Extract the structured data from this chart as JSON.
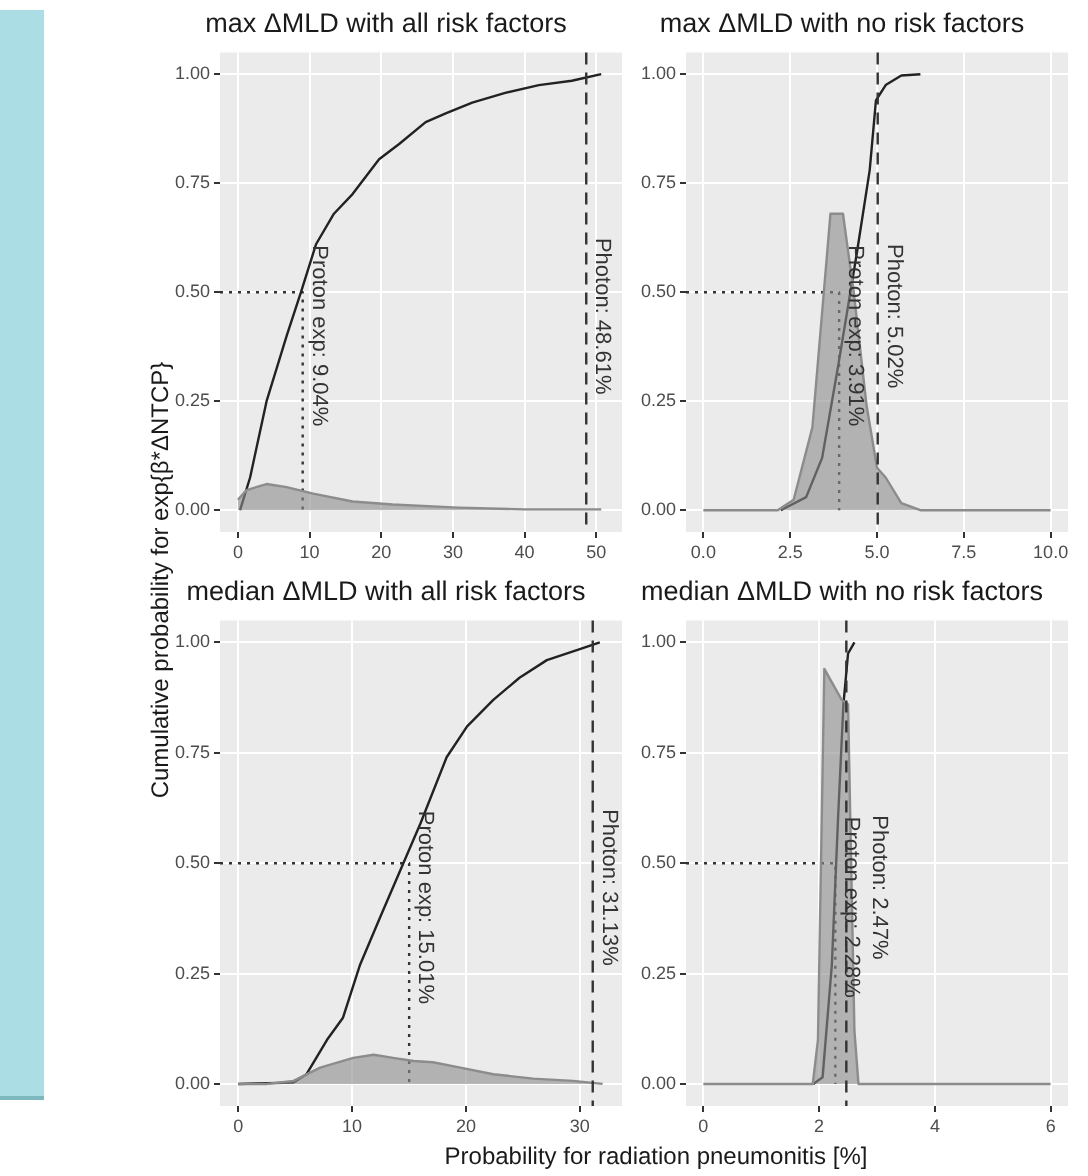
{
  "chart_data": [
    {
      "type": "line",
      "title": "max ΔMLD with all risk factors",
      "ylabel": "Cumulative probability for exp{β*ΔNTCP}",
      "marker": "none",
      "grid": true,
      "legend": false,
      "xlim": [
        -2.5,
        53.6
      ],
      "xticks": [
        0,
        10,
        20,
        30,
        40,
        50
      ],
      "ylim": [
        -0.05,
        1.05
      ],
      "yticks": [
        {
          "value": 0,
          "label": "0.00"
        },
        {
          "value": 0.25,
          "label": "0.25"
        },
        {
          "value": 0.5,
          "label": "0.50"
        },
        {
          "value": 0.75,
          "label": "0.75"
        },
        {
          "value": 1,
          "label": "1.00"
        }
      ],
      "series": [
        {
          "type": "area",
          "color": "#8c8c8c",
          "x": [
            0,
            1.2,
            4,
            6.8,
            10.5,
            16,
            21.6,
            30.8,
            40,
            50.7
          ],
          "values": [
            0.024,
            0.046,
            0.06,
            0.053,
            0.038,
            0.02,
            0.013,
            0.006,
            0.002,
            0.002
          ]
        },
        {
          "type": "line",
          "color": "#222222",
          "x": [
            0.3,
            1.7,
            4,
            6.8,
            8.8,
            10.9,
            13.4,
            16,
            19.7,
            22.5,
            26.2,
            29,
            32.7,
            37.3,
            42,
            46.6,
            50.7
          ],
          "values": [
            0,
            0.075,
            0.25,
            0.4,
            0.5,
            0.61,
            0.68,
            0.725,
            0.805,
            0.84,
            0.89,
            0.91,
            0.935,
            0.957,
            0.975,
            0.985,
            1
          ]
        },
        {
          "type": "line",
          "color": "#333333",
          "line_style": "dotted",
          "x": [
            -2.5,
            9.04,
            9.04
          ],
          "values": [
            0.5,
            0.5,
            0
          ]
        }
      ],
      "ref_lines": [
        {
          "axis": "x",
          "value": 48.61,
          "label": "Photon: 48.61%",
          "color": "#333333",
          "line_style": "dashed"
        }
      ],
      "annotations": [
        {
          "text": "Proton exp: 9.04%",
          "x": 9.04,
          "y": 0.4
        }
      ]
    },
    {
      "type": "line",
      "title": "max ΔMLD with no risk factors",
      "marker": "none",
      "grid": true,
      "legend": false,
      "xlim": [
        -0.5,
        10.5
      ],
      "xticks": [
        {
          "value": 0,
          "label": "0.0"
        },
        {
          "value": 2.5,
          "label": "2.5"
        },
        {
          "value": 5,
          "label": "5.0"
        },
        {
          "value": 7.5,
          "label": "7.5"
        },
        {
          "value": 10,
          "label": "10.0"
        }
      ],
      "ylim": [
        -0.05,
        1.05
      ],
      "yticks": [
        {
          "value": 0,
          "label": "0.00"
        },
        {
          "value": 0.25,
          "label": "0.25"
        },
        {
          "value": 0.5,
          "label": "0.50"
        },
        {
          "value": 0.75,
          "label": "0.75"
        },
        {
          "value": 1,
          "label": "1.00"
        }
      ],
      "series": [
        {
          "type": "area",
          "color": "#8c8c8c",
          "x": [
            0,
            2.14,
            2.6,
            3.14,
            3.66,
            4.02,
            4.33,
            4.7,
            5,
            5.25,
            5.7,
            6.25,
            10
          ],
          "values": [
            0,
            0,
            0.024,
            0.19,
            0.68,
            0.68,
            0.5,
            0.24,
            0.097,
            0.075,
            0.016,
            0,
            0
          ]
        },
        {
          "type": "line",
          "color": "#222222",
          "x": [
            2.23,
            2.96,
            3.42,
            3.88,
            4.15,
            4.42,
            4.79,
            4.97,
            5.25,
            5.7,
            6.25
          ],
          "values": [
            0,
            0.03,
            0.12,
            0.33,
            0.46,
            0.59,
            0.78,
            0.94,
            0.975,
            0.997,
            1
          ]
        },
        {
          "type": "line",
          "color": "#333333",
          "line_style": "dotted",
          "x": [
            -0.5,
            3.91,
            3.91
          ],
          "values": [
            0.5,
            0.5,
            0
          ]
        }
      ],
      "ref_lines": [
        {
          "axis": "x",
          "value": 5.02,
          "label": "Photon: 5.02%",
          "color": "#333333",
          "line_style": "dashed"
        }
      ],
      "annotations": [
        {
          "text": "Proton exp: 3.91%",
          "x": 3.91,
          "y": 0.4
        }
      ]
    },
    {
      "type": "line",
      "title": "median ΔMLD with all risk factors",
      "xlabel": "Probability for radiation pneumonitis [%]",
      "marker": "none",
      "grid": true,
      "legend": false,
      "xlim": [
        -1.6,
        33.7
      ],
      "xticks": [
        0,
        10,
        20,
        30
      ],
      "ylim": [
        -0.05,
        1.05
      ],
      "yticks": [
        {
          "value": 0,
          "label": "0.00"
        },
        {
          "value": 0.25,
          "label": "0.25"
        },
        {
          "value": 0.5,
          "label": "0.50"
        },
        {
          "value": 0.75,
          "label": "0.75"
        },
        {
          "value": 1,
          "label": "1.00"
        }
      ],
      "series": [
        {
          "type": "area",
          "color": "#8c8c8c",
          "x": [
            0,
            2.5,
            4.85,
            7.2,
            10.1,
            11.9,
            13.6,
            15.4,
            17.1,
            19.5,
            22.4,
            25.9,
            29.4,
            32
          ],
          "values": [
            0,
            0,
            0.007,
            0.037,
            0.059,
            0.066,
            0.059,
            0.052,
            0.049,
            0.037,
            0.022,
            0.012,
            0.007,
            0
          ]
        },
        {
          "type": "line",
          "color": "#222222",
          "x": [
            0,
            4.85,
            6,
            7.8,
            9.2,
            10.7,
            12.5,
            14.5,
            16,
            18.3,
            20.1,
            22.4,
            24.7,
            27.1,
            30,
            31.75
          ],
          "values": [
            0,
            0.003,
            0.022,
            0.1,
            0.15,
            0.27,
            0.38,
            0.5,
            0.59,
            0.74,
            0.81,
            0.87,
            0.92,
            0.96,
            0.985,
            1
          ]
        },
        {
          "type": "line",
          "color": "#333333",
          "line_style": "dotted",
          "x": [
            -1.6,
            15.01,
            15.01
          ],
          "values": [
            0.5,
            0.5,
            0
          ]
        }
      ],
      "ref_lines": [
        {
          "axis": "x",
          "value": 31.13,
          "label": "Photon: 31.13%",
          "color": "#333333",
          "line_style": "dashed"
        }
      ],
      "annotations": [
        {
          "text": "Proton exp: 15.01%",
          "x": 15.01,
          "y": 0.4
        }
      ]
    },
    {
      "type": "line",
      "title": "median ΔMLD with no risk factors",
      "marker": "none",
      "grid": true,
      "legend": false,
      "xlim": [
        -0.3,
        6.3
      ],
      "xticks": [
        0,
        2,
        4,
        6
      ],
      "ylim": [
        -0.05,
        1.05
      ],
      "yticks": [
        {
          "value": 0,
          "label": "0.00"
        },
        {
          "value": 0.25,
          "label": "0.25"
        },
        {
          "value": 0.5,
          "label": "0.50"
        },
        {
          "value": 0.75,
          "label": "0.75"
        },
        {
          "value": 1,
          "label": "1.00"
        }
      ],
      "series": [
        {
          "type": "area",
          "color": "#8c8c8c",
          "x": [
            0,
            1.89,
            1.98,
            2.09,
            2.39,
            2.5,
            2.61,
            2.68,
            6
          ],
          "values": [
            0,
            0,
            0.1,
            0.94,
            0.87,
            0.86,
            0.12,
            0,
            0
          ]
        },
        {
          "type": "line",
          "color": "#222222",
          "x": [
            1.9,
            2.06,
            2.22,
            2.33,
            2.42,
            2.5,
            2.61
          ],
          "values": [
            0,
            0.015,
            0.27,
            0.61,
            0.86,
            0.975,
            1
          ]
        },
        {
          "type": "line",
          "color": "#333333",
          "line_style": "dotted",
          "x": [
            -0.3,
            2.28,
            2.28
          ],
          "values": [
            0.5,
            0.5,
            0
          ]
        }
      ],
      "ref_lines": [
        {
          "axis": "x",
          "value": 2.47,
          "label": "Photon: 2.47%",
          "color": "#333333",
          "line_style": "dashed"
        }
      ],
      "annotations": [
        {
          "text": "Proton exp: 2.28%",
          "x": 2.28,
          "y": 0.4
        }
      ]
    }
  ]
}
